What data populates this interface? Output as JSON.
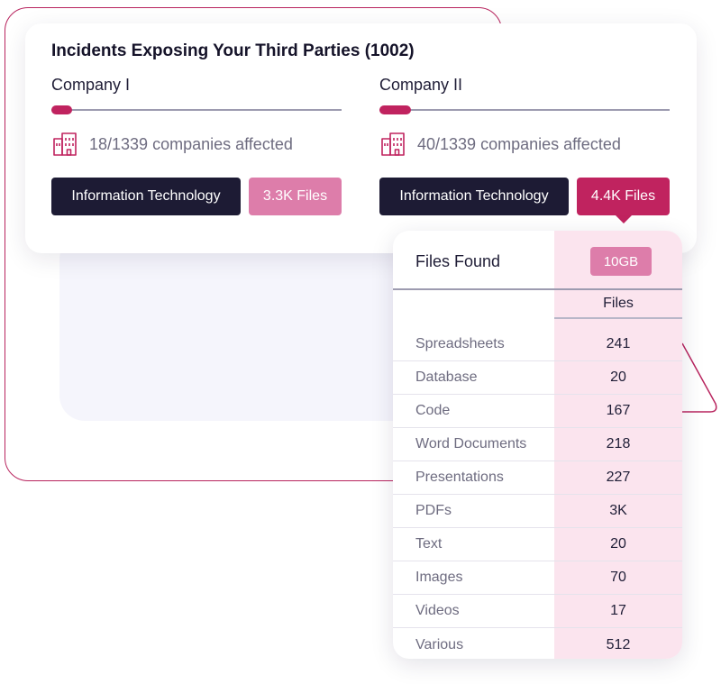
{
  "card": {
    "title": "Incidents Exposing Your Third Parties (1002)"
  },
  "companies": [
    {
      "name": "Company I",
      "progress": 0.07,
      "affected_text": "18/1339 companies affected",
      "industry_label": "Information Technology",
      "files_label": "3.3K Files",
      "selected": false
    },
    {
      "name": "Company II",
      "progress": 0.11,
      "affected_text": "40/1339 companies affected",
      "industry_label": "Information Technology",
      "files_label": "4.4K Files",
      "selected": true
    }
  ],
  "files_panel": {
    "title": "Files Found",
    "size_badge": "10GB",
    "column_header": "Files",
    "rows": [
      {
        "type": "Spreadsheets",
        "count": "241"
      },
      {
        "type": "Database",
        "count": "20"
      },
      {
        "type": "Code",
        "count": "167"
      },
      {
        "type": "Word Documents",
        "count": "218"
      },
      {
        "type": "Presentations",
        "count": "227"
      },
      {
        "type": "PDFs",
        "count": "3K"
      },
      {
        "type": "Text",
        "count": "20"
      },
      {
        "type": "Images",
        "count": "70"
      },
      {
        "type": "Videos",
        "count": "17"
      },
      {
        "type": "Various",
        "count": "512"
      }
    ]
  },
  "icons": {
    "affected": "building-icon"
  },
  "colors": {
    "accent": "#c0235f",
    "accent_light": "#dd7daa",
    "dark_button": "#1d1b34",
    "panel_highlight": "#fbe4ee"
  }
}
